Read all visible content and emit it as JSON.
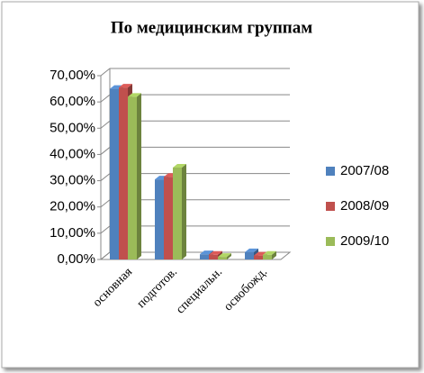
{
  "chart_data": {
    "type": "bar3d",
    "title": "По медицинским группам",
    "categories": [
      "основная",
      "подготов.",
      "специальн.",
      "освобожд."
    ],
    "series": [
      {
        "name": "2007/08",
        "color": "#4f81bd",
        "values": [
          65,
          30.5,
          2,
          2.8
        ]
      },
      {
        "name": "2008/09",
        "color": "#c0504d",
        "values": [
          65.5,
          31.5,
          1.8,
          1.5
        ]
      },
      {
        "name": "2009/10",
        "color": "#9bbb59",
        "values": [
          62,
          35,
          1,
          1.8
        ]
      }
    ],
    "ylim": [
      0,
      70
    ],
    "yticks": [
      {
        "value": 0,
        "label": "0,00%"
      },
      {
        "value": 10,
        "label": "10,00%"
      },
      {
        "value": 20,
        "label": "20,00%"
      },
      {
        "value": 30,
        "label": "30,00%"
      },
      {
        "value": 40,
        "label": "40,00%"
      },
      {
        "value": 50,
        "label": "50,00%"
      },
      {
        "value": 60,
        "label": "60,00%"
      },
      {
        "value": 70,
        "label": "70,00%"
      }
    ],
    "grid": true,
    "legend": "right"
  }
}
